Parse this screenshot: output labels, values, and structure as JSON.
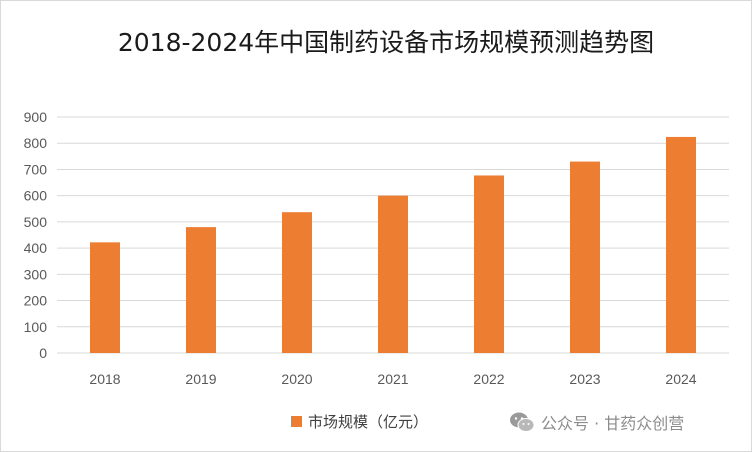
{
  "chart_data": {
    "type": "bar",
    "title": "2018-2024年中国制药设备市场规模预测趋势图",
    "categories": [
      "2018",
      "2019",
      "2020",
      "2021",
      "2022",
      "2023",
      "2024"
    ],
    "series": [
      {
        "name": "市场规模（亿元）",
        "values": [
          422,
          480,
          537,
          600,
          677,
          730,
          824
        ]
      }
    ],
    "yticks": [
      "0",
      "100",
      "200",
      "300",
      "400",
      "500",
      "600",
      "700",
      "800",
      "900"
    ],
    "ylim": [
      0,
      900
    ],
    "xlabel": "",
    "ylabel": "",
    "grid": true,
    "legend_position": "bottom"
  },
  "colors": {
    "bar": "#ED7D31",
    "grid": "#d9d9d9",
    "text": "#595959"
  },
  "watermark": {
    "text": "公众号 · 甘药众创营",
    "icon": "wechat-icon"
  }
}
